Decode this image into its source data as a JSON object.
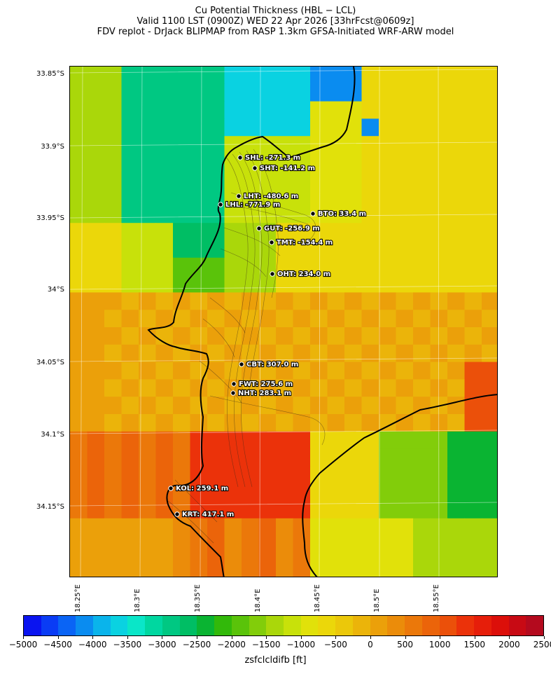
{
  "title": {
    "line1": "Cu Potential Thickness (HBL − LCL)",
    "line2": "Valid 1100 LST (0900Z) WED 22 Apr 2026 [33hrFcst@0609z]",
    "line3": "FDV replot - DrJack BLIPMAP from RASP 1.3km GFSA-Initiated WRF-ARW model"
  },
  "axes": {
    "lat_labels": [
      "33.85°S",
      "33.9°S",
      "33.95°S",
      "34°S",
      "34.05°S",
      "34.1°S",
      "34.15°S"
    ],
    "lon_labels": [
      "18.25°E",
      "18.3°E",
      "18.35°E",
      "18.4°E",
      "18.45°E",
      "18.5°E",
      "18.55°E"
    ]
  },
  "stations": [
    {
      "label": "SHL: -271.3 m"
    },
    {
      "label": "SHT: -141.2 m"
    },
    {
      "label": "LHT: -480.6 m"
    },
    {
      "label": "LHL: -771.9 m"
    },
    {
      "label": "BTO: 33.4 m"
    },
    {
      "label": "GUT: -256.9 m"
    },
    {
      "label": "TMT: -154.4 m"
    },
    {
      "label": "OHT: 234.0 m"
    },
    {
      "label": "CBT: 307.0 m"
    },
    {
      "label": "FWT: 275.6 m"
    },
    {
      "label": "NHT: 283.1 m"
    },
    {
      "label": "KOL: 259.1 m"
    },
    {
      "label": "KRT: 417.1 m"
    }
  ],
  "colorbar": {
    "label": "zsfclcldifb [ft]",
    "ticks": [
      "−5000",
      "−4500",
      "−4000",
      "−3500",
      "−3000",
      "−2500",
      "−2000",
      "−1500",
      "−1000",
      "−500",
      "0",
      "500",
      "1000",
      "1500",
      "2000",
      "2500"
    ],
    "colors": [
      "#0a14f0",
      "#0a3cf5",
      "#0a64f5",
      "#0a8cf0",
      "#0ab4eb",
      "#0ad2e1",
      "#0ae6c8",
      "#00d7a0",
      "#00c882",
      "#00be64",
      "#0ab432",
      "#32b90a",
      "#5ac30a",
      "#82cd0a",
      "#aad70a",
      "#c8e10a",
      "#e1e10a",
      "#ebd70a",
      "#ebc80a",
      "#ebb40a",
      "#eba00a",
      "#eb8c0a",
      "#eb780a",
      "#eb640a",
      "#eb500a",
      "#eb320a",
      "#e61e0a",
      "#dc0f0a",
      "#c80a14",
      "#b40a1e"
    ]
  }
}
